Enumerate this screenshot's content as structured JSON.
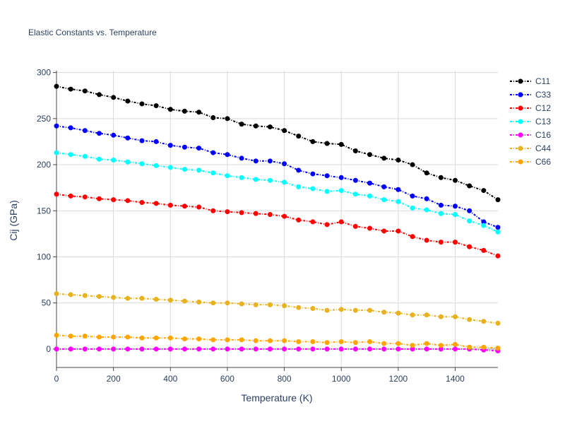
{
  "chart_data": {
    "type": "line",
    "title": "Elastic Constants vs. Temperature",
    "xlabel": "Temperature (K)",
    "ylabel": "Cij (GPa)",
    "xlim": [
      0,
      1550
    ],
    "ylim": [
      -20,
      302
    ],
    "xticks": [
      0,
      200,
      400,
      600,
      800,
      1000,
      1200,
      1400
    ],
    "yticks": [
      0,
      50,
      100,
      150,
      200,
      250,
      300
    ],
    "x": [
      0,
      50,
      100,
      150,
      200,
      250,
      300,
      350,
      400,
      450,
      500,
      550,
      600,
      650,
      700,
      750,
      800,
      850,
      900,
      950,
      1000,
      1050,
      1100,
      1150,
      1200,
      1250,
      1300,
      1350,
      1400,
      1450,
      1500,
      1550
    ],
    "legend_position": "top-right",
    "grid": true,
    "series": [
      {
        "name": "C11",
        "color": "#000000",
        "values": [
          285,
          282,
          280,
          276,
          273,
          269,
          266,
          264,
          260,
          258,
          257,
          251,
          250,
          244,
          242,
          241,
          237,
          231,
          225,
          223,
          222,
          215,
          211,
          207,
          205,
          200,
          191,
          186,
          183,
          177,
          172,
          162
        ]
      },
      {
        "name": "C33",
        "color": "#0000ff",
        "values": [
          242,
          240,
          237,
          234,
          232,
          229,
          226,
          225,
          221,
          219,
          218,
          213,
          211,
          207,
          204,
          204,
          201,
          194,
          190,
          188,
          186,
          183,
          180,
          176,
          173,
          166,
          163,
          156,
          155,
          150,
          138,
          132
        ]
      },
      {
        "name": "C12",
        "color": "#ff0000",
        "values": [
          168,
          166,
          165,
          163,
          162,
          161,
          159,
          158,
          156,
          155,
          154,
          150,
          149,
          148,
          147,
          146,
          144,
          140,
          138,
          135,
          138,
          133,
          131,
          128,
          128,
          122,
          118,
          116,
          116,
          111,
          107,
          101
        ]
      },
      {
        "name": "C13",
        "color": "#00ffff",
        "values": [
          213,
          211,
          209,
          206,
          205,
          203,
          201,
          199,
          197,
          195,
          194,
          191,
          188,
          186,
          184,
          183,
          181,
          176,
          174,
          171,
          172,
          168,
          166,
          162,
          160,
          153,
          151,
          147,
          146,
          139,
          134,
          127
        ]
      },
      {
        "name": "C16",
        "color": "#ff00ff",
        "values": [
          0,
          0,
          0,
          0,
          0,
          0,
          0,
          0,
          0,
          0,
          0,
          0,
          0,
          0,
          0,
          0,
          0,
          0,
          0,
          0,
          0,
          0,
          0,
          0,
          0,
          0,
          0,
          0,
          0,
          0,
          -1,
          -2
        ]
      },
      {
        "name": "C44",
        "color": "#e8b21f",
        "values": [
          60,
          59,
          58,
          57,
          56,
          55,
          55,
          54,
          53,
          52,
          51,
          50,
          50,
          49,
          48,
          48,
          47,
          45,
          44,
          42,
          43,
          42,
          42,
          40,
          39,
          37,
          37,
          35,
          35,
          32,
          30,
          28
        ]
      },
      {
        "name": "C66",
        "color": "#ffa500",
        "values": [
          15,
          14,
          14,
          13,
          13,
          13,
          12,
          12,
          12,
          11,
          11,
          10,
          10,
          10,
          9,
          9,
          9,
          8,
          8,
          7,
          8,
          7,
          8,
          6,
          6,
          4,
          6,
          4,
          5,
          2,
          2,
          1
        ]
      }
    ]
  }
}
